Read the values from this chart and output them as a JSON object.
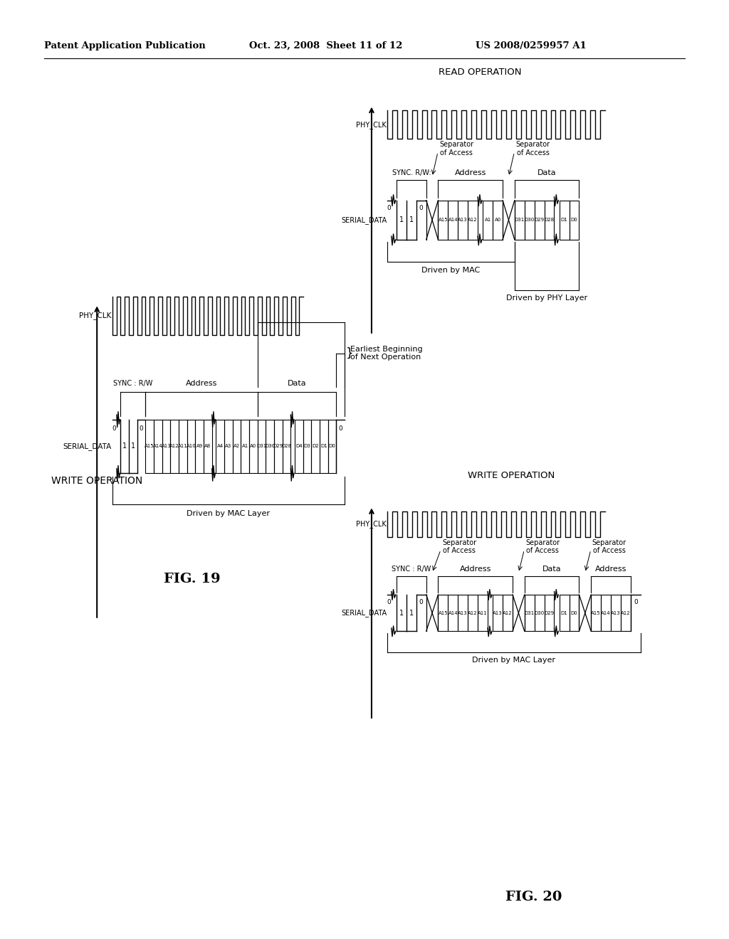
{
  "bg": "#ffffff",
  "header_left": "Patent Application Publication",
  "header_center": "Oct. 23, 2008  Sheet 11 of 12",
  "header_right": "US 2008/0259957 A1",
  "fig19_title": "WRITE OPERATION",
  "fig19_label": "FIG. 19",
  "fig19_phy_clk": "PHY_CLK",
  "fig19_serial": "SERIAL_DATA",
  "fig19_sync": "SYNC : R/W",
  "fig19_address": "Address",
  "fig19_data": "Data",
  "fig19_driven": "Driven by MAC Layer",
  "fig19_earliest": "Earliest Beginning\nof Next Operation",
  "fig20_write_title": "WRITE OPERATION",
  "fig20_read_title": "READ OPERATION",
  "fig20_label": "FIG. 20",
  "fig20_phy_clk": "PHY_CLK",
  "fig20_serial": "SERIAL_DATA",
  "fig20_sync_rw": "SYNC : R/W",
  "fig20_sync_rw2": "SYNC. R/W:",
  "fig20_sep_access": "Separator\nof Access",
  "fig20_address": "Address",
  "fig20_data": "Data",
  "fig20_driven_mac": "Driven by MAC Layer",
  "fig20_driven_mac2": "Driven by MAC",
  "fig20_driven_phy": "Driven by PHY Layer"
}
